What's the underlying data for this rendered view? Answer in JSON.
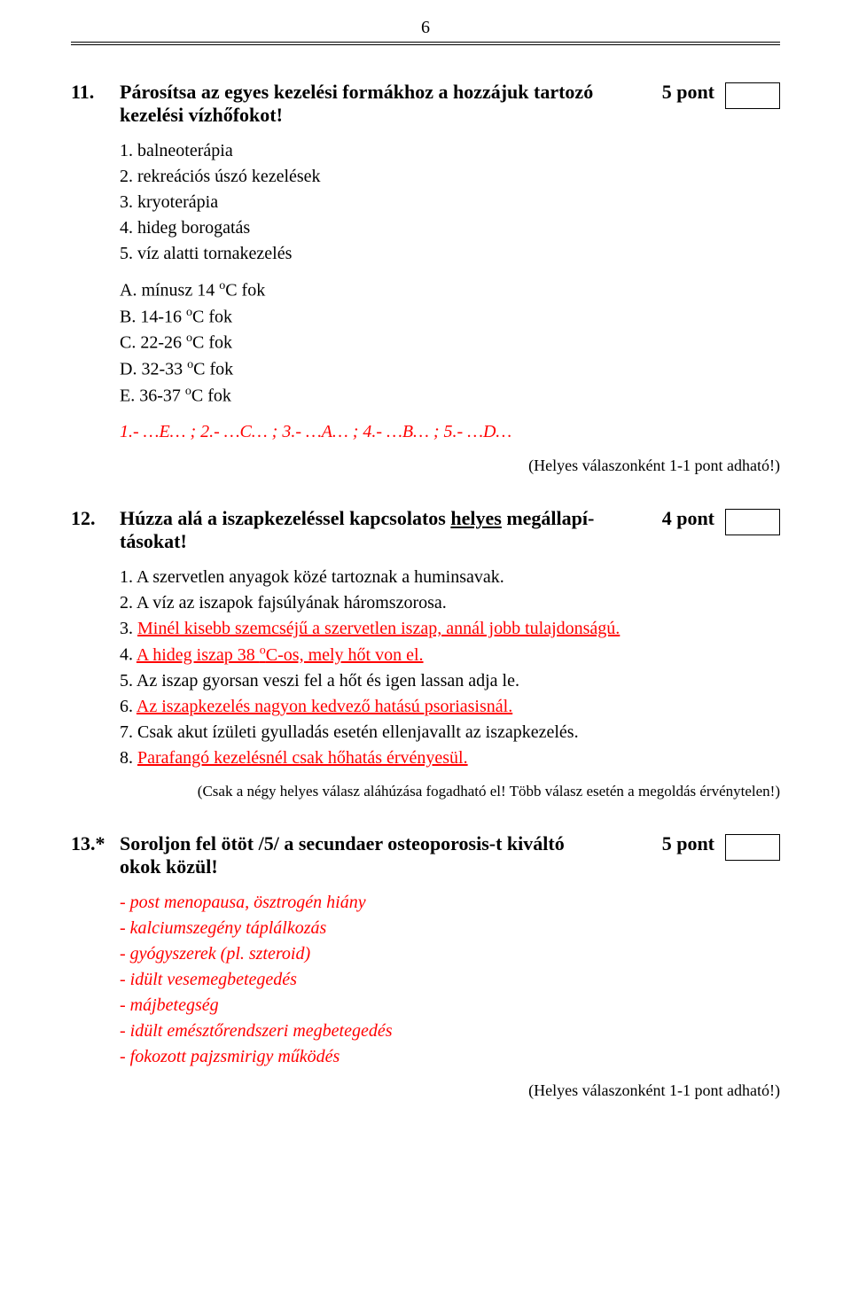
{
  "page_number": "6",
  "q11": {
    "num": "11.",
    "title_part1": "Párosítsa az egyes kezelési formákhoz a hozzájuk tartozó",
    "title_part2": "kezelési vízhőfokot!",
    "points": "5 pont",
    "items": [
      "1. balneoterápia",
      "2. rekreációs úszó kezelések",
      "3. kryoterápia",
      "4. hideg borogatás",
      "5. víz alatti tornakezelés"
    ],
    "options_a": "A. mínusz 14 ",
    "options_a_tail": "C fok",
    "options_b": "B. 14-16 ",
    "options_c": "C. 22-26 ",
    "options_d": "D. 32-33 ",
    "options_e": "E. 36-37 ",
    "deg": "o",
    "c_tail": "C fok",
    "answer_key": "1.- …E… ;   2.- …C… ;   3.- …A… ;   4.- …B… ;   5.- …D…",
    "note": "(Helyes válaszonként 1-1 pont adható!)"
  },
  "q12": {
    "num": "12.",
    "title_part1": "Húzza alá a iszapkezeléssel kapcsolatos ",
    "title_underline": "helyes",
    "title_part2": " megállapí-",
    "title_part3": "tásokat!",
    "points": "4 pont",
    "items": [
      {
        "n": "1. ",
        "text": "A szervetlen anyagok közé tartoznak a huminsavak.",
        "u": false
      },
      {
        "n": "2. ",
        "text": "A víz az iszapok fajsúlyának háromszorosa.",
        "u": false
      },
      {
        "n": "3. ",
        "text": "Minél kisebb szemcséjű a szervetlen iszap, annál jobb tulajdonságú.",
        "u": true
      },
      {
        "n": "4. ",
        "text_a": "A hideg iszap 38 ",
        "deg": "o",
        "text_b": "C-os, mely hőt von el.",
        "u": true
      },
      {
        "n": "5. ",
        "text": "Az iszap gyorsan veszi fel a hőt és igen lassan adja le.",
        "u": false
      },
      {
        "n": "6. ",
        "text": "Az iszapkezelés nagyon kedvező hatású psoriasisnál.",
        "u": true
      },
      {
        "n": "7. ",
        "text": "Csak akut ízületi gyulladás esetén ellenjavallt az iszapkezelés.",
        "u": false
      },
      {
        "n": "8. ",
        "text": "Parafangó kezelésnél csak hőhatás érvényesül.",
        "u": true
      }
    ],
    "note": "(Csak a négy helyes válasz aláhúzása fogadható el! Több válasz esetén a megoldás érvénytelen!)"
  },
  "q13": {
    "num": "13.*",
    "title_part1": "Soroljon fel ötöt /5/ a secundaer osteoporosis-t kiváltó",
    "title_part2": "okok közül!",
    "points": "5 pont",
    "answers": [
      "- post menopausa, ösztrogén hiány",
      "- kalciumszegény táplálkozás",
      "- gyógyszerek (pl. szteroid)",
      "- idült vesemegbetegedés",
      "- májbetegség",
      "- idült emésztőrendszeri megbetegedés",
      "- fokozott pajzsmirigy működés"
    ],
    "note": "(Helyes válaszonként 1-1 pont adható!)"
  }
}
